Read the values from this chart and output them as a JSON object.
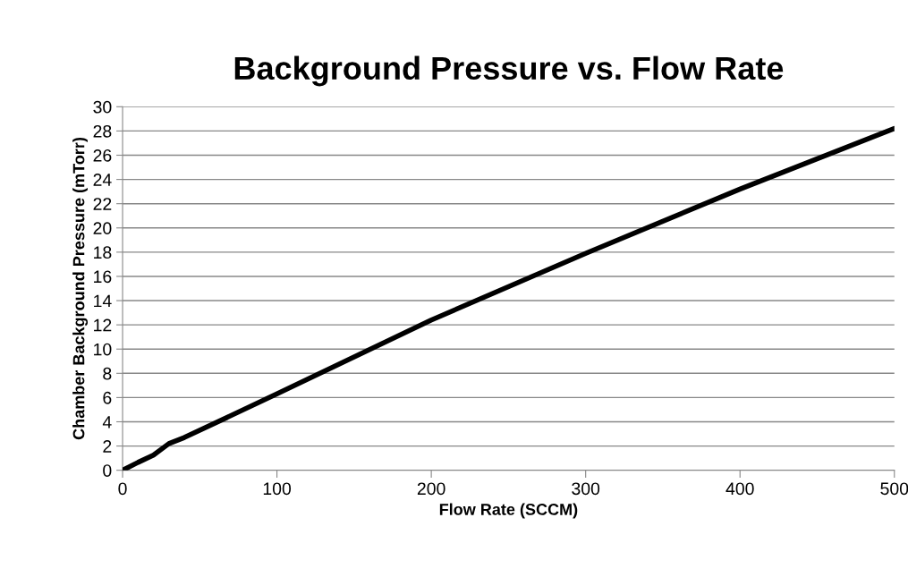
{
  "chart_data": {
    "type": "line",
    "title": "Background Pressure vs. Flow Rate",
    "xlabel": "Flow Rate (SCCM)",
    "ylabel": "Chamber Background Pressure (mTorr)",
    "x": [
      0,
      10,
      20,
      30,
      40,
      100,
      200,
      300,
      400,
      500
    ],
    "series": [
      {
        "color": "#000000",
        "values": [
          0,
          0.65,
          1.25,
          2.2,
          2.7,
          6.3,
          12.4,
          17.9,
          23.2,
          28.2
        ]
      }
    ],
    "xlim": [
      0,
      500
    ],
    "xticks": [
      0,
      100,
      200,
      300,
      400,
      500
    ],
    "ylim": [
      0,
      30
    ],
    "yticks": [
      0,
      2,
      4,
      6,
      8,
      10,
      12,
      14,
      16,
      18,
      20,
      22,
      24,
      26,
      28,
      30
    ],
    "grid": "y",
    "legend": false,
    "marker": "none",
    "line_style": "solid"
  }
}
